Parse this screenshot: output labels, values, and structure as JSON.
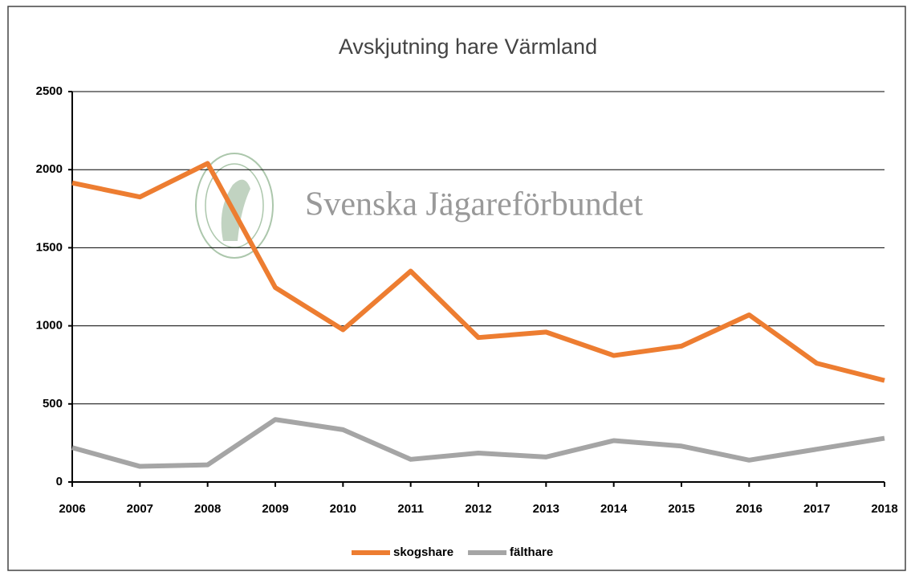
{
  "chart_data": {
    "type": "line",
    "title": "Avskjutning hare Värmland",
    "watermark": "Svenska Jägareförbundet",
    "categories": [
      "2006",
      "2007",
      "2008",
      "2009",
      "2010",
      "2011",
      "2012",
      "2013",
      "2014",
      "2015",
      "2016",
      "2017",
      "2018"
    ],
    "series": [
      {
        "name": "skogshare",
        "color": "#ed7d31",
        "values": [
          1915,
          1825,
          2040,
          1245,
          975,
          1350,
          925,
          960,
          810,
          870,
          1070,
          760,
          650
        ]
      },
      {
        "name": "fälthare",
        "color": "#a5a5a5",
        "values": [
          220,
          100,
          110,
          400,
          335,
          145,
          185,
          160,
          265,
          230,
          140,
          210,
          280
        ]
      }
    ],
    "ylim": [
      0,
      2500
    ],
    "yticks": [
      0,
      500,
      1000,
      1500,
      2000,
      2500
    ],
    "grid": true,
    "legend": "bottom"
  }
}
